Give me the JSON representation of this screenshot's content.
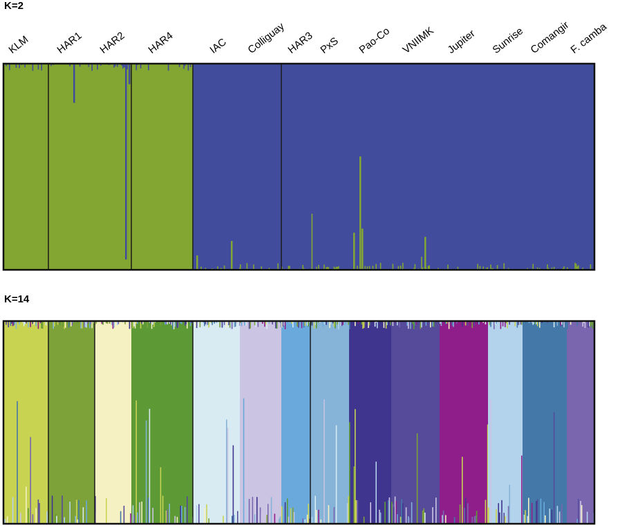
{
  "chart_data": [
    {
      "type": "bar",
      "title": "K=2",
      "stacked": true,
      "ylim": [
        0,
        1
      ],
      "populations": [
        "KLM",
        "HAR1",
        "HAR2",
        "HAR4",
        "IAC",
        "Colliguay",
        "HAR3",
        "PxS",
        "Pao-Co",
        "VNIIMK",
        "Jupiter",
        "Sunrise",
        "Comangir",
        "F. camba"
      ],
      "cluster_colors": [
        "#83a531",
        "#414d9c"
      ],
      "dominant_cluster": [
        0,
        0,
        0,
        0,
        1,
        1,
        1,
        1,
        1,
        1,
        1,
        1,
        1,
        1
      ],
      "mean_membership": [
        [
          0.99,
          0.01
        ],
        [
          0.98,
          0.02
        ],
        [
          0.98,
          0.02
        ],
        [
          0.99,
          0.01
        ],
        [
          0.03,
          0.97
        ],
        [
          0.02,
          0.98
        ],
        [
          0.01,
          0.99
        ],
        [
          0.02,
          0.98
        ],
        [
          0.08,
          0.92
        ],
        [
          0.02,
          0.98
        ],
        [
          0.01,
          0.99
        ],
        [
          0.01,
          0.99
        ],
        [
          0.02,
          0.98
        ],
        [
          0.02,
          0.98
        ]
      ]
    },
    {
      "type": "bar",
      "title": "K=14",
      "stacked": true,
      "ylim": [
        0,
        1
      ],
      "populations": [
        "KLM",
        "HAR1",
        "HAR2",
        "HAR4",
        "IAC",
        "Colliguay",
        "HAR3",
        "PxS",
        "Pao-Co",
        "VNIIMK",
        "Jupiter",
        "Sunrise",
        "Comangir",
        "F. camba"
      ],
      "cluster_colors": [
        "#c8d352",
        "#7ea23a",
        "#f6f1c2",
        "#d8eaf2",
        "#cbc4e2",
        "#6aa9dc",
        "#85b4d8",
        "#40358e",
        "#564b9a",
        "#8f1e8a",
        "#b3d3ec",
        "#4378a8",
        "#7966ae",
        "#5d9a36"
      ],
      "dominant_cluster": [
        0,
        1,
        2,
        13,
        3,
        4,
        5,
        6,
        7,
        8,
        9,
        10,
        11,
        12
      ]
    }
  ]
}
